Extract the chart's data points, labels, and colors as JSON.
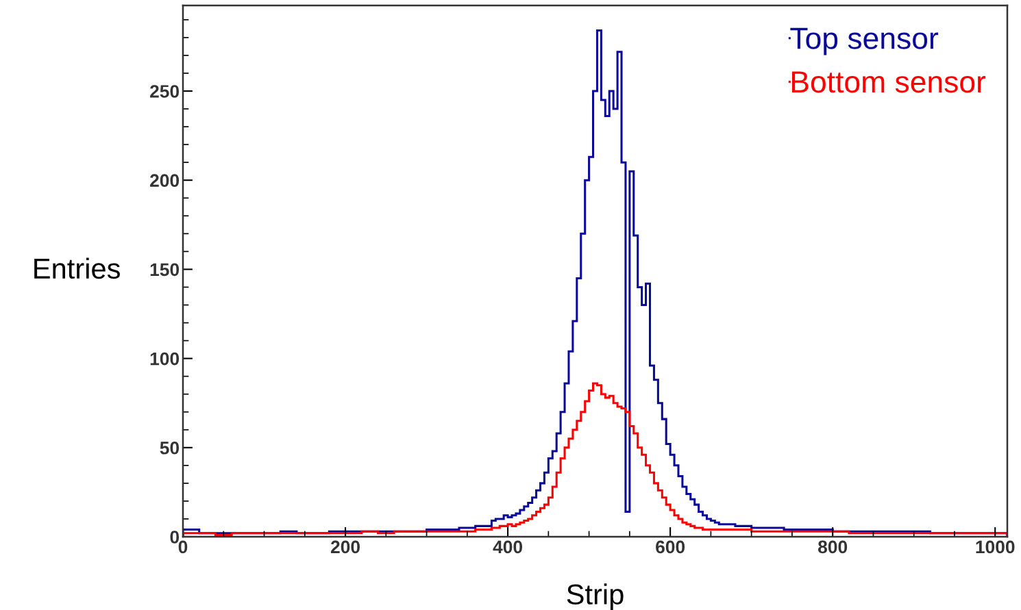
{
  "chart_data": {
    "type": "histogram",
    "xlabel": "Strip",
    "ylabel": "Entries",
    "bins": [
      0,
      20,
      40,
      60,
      80,
      100,
      120,
      140,
      160,
      180,
      200,
      220,
      240,
      260,
      280,
      300,
      320,
      340,
      360,
      380,
      385,
      390,
      395,
      400,
      405,
      410,
      415,
      420,
      425,
      430,
      435,
      440,
      445,
      450,
      455,
      460,
      465,
      470,
      475,
      480,
      485,
      490,
      495,
      500,
      505,
      510,
      515,
      520,
      525,
      530,
      535,
      540,
      545,
      550,
      555,
      560,
      565,
      570,
      575,
      580,
      585,
      590,
      595,
      600,
      605,
      610,
      615,
      620,
      625,
      630,
      635,
      640,
      645,
      650,
      655,
      660,
      680,
      700,
      720,
      740,
      760,
      780,
      800,
      820,
      840,
      860,
      880,
      900,
      920,
      940,
      960,
      980,
      1000,
      1015
    ],
    "series": [
      {
        "name": "Top sensor",
        "color": "#0a0a9a",
        "values": [
          4,
          2,
          2,
          2,
          2,
          2,
          3,
          2,
          2,
          3,
          3,
          3,
          3,
          3,
          3,
          4,
          4,
          5,
          6,
          9,
          10,
          10,
          12,
          11,
          12,
          13,
          15,
          17,
          19,
          22,
          26,
          30,
          36,
          44,
          48,
          58,
          70,
          86,
          104,
          121,
          145,
          170,
          200,
          213,
          250,
          284,
          245,
          236,
          250,
          240,
          272,
          210,
          14,
          205,
          169,
          140,
          130,
          142,
          96,
          88,
          75,
          66,
          52,
          46,
          40,
          34,
          28,
          24,
          21,
          18,
          14,
          12,
          10,
          9,
          8,
          7,
          6,
          5,
          5,
          4,
          4,
          4,
          3,
          3,
          3,
          3,
          3,
          3,
          2,
          2,
          2,
          2,
          2
        ]
      },
      {
        "name": "Bottom sensor",
        "color": "#ff0000",
        "values": [
          2,
          2,
          1,
          2,
          2,
          2,
          2,
          2,
          2,
          2,
          2,
          3,
          2,
          3,
          3,
          3,
          3,
          3,
          4,
          5,
          5,
          6,
          6,
          7,
          6,
          7,
          8,
          9,
          10,
          12,
          14,
          16,
          18,
          22,
          28,
          36,
          44,
          50,
          55,
          60,
          65,
          70,
          76,
          82,
          86,
          85,
          80,
          78,
          79,
          75,
          73,
          72,
          70,
          62,
          58,
          50,
          46,
          40,
          36,
          30,
          26,
          22,
          18,
          15,
          12,
          10,
          8,
          7,
          6,
          5,
          5,
          4,
          4,
          4,
          4,
          4,
          4,
          3,
          3,
          3,
          3,
          3,
          3,
          2,
          2,
          2,
          2,
          2,
          2,
          2,
          2,
          2,
          2
        ]
      }
    ],
    "xlim": [
      0,
      1015
    ],
    "ylim": [
      0,
      298
    ],
    "xticks": [
      0,
      {
        "value": 50,
        "label": null
      },
      {
        "value": 100,
        "label": null
      },
      {
        "value": 150,
        "label": null
      },
      200,
      {
        "value": 250,
        "label": null
      },
      {
        "value": 300,
        "label": null
      },
      {
        "value": 350,
        "label": null
      },
      400,
      {
        "value": 450,
        "label": null
      },
      {
        "value": 500,
        "label": null
      },
      {
        "value": 550,
        "label": null
      },
      600,
      {
        "value": 650,
        "label": null
      },
      {
        "value": 700,
        "label": null
      },
      {
        "value": 750,
        "label": null
      },
      800,
      {
        "value": 850,
        "label": null
      },
      {
        "value": 900,
        "label": null
      },
      {
        "value": 950,
        "label": null
      },
      1000
    ],
    "yticks": [
      0,
      {
        "value": 10,
        "label": null
      },
      {
        "value": 20,
        "label": null
      },
      {
        "value": 30,
        "label": null
      },
      {
        "value": 40,
        "label": null
      },
      50,
      {
        "value": 60,
        "label": null
      },
      {
        "value": 70,
        "label": null
      },
      {
        "value": 80,
        "label": null
      },
      {
        "value": 90,
        "label": null
      },
      100,
      {
        "value": 110,
        "label": null
      },
      {
        "value": 120,
        "label": null
      },
      {
        "value": 130,
        "label": null
      },
      {
        "value": 140,
        "label": null
      },
      150,
      {
        "value": 160,
        "label": null
      },
      {
        "value": 170,
        "label": null
      },
      {
        "value": 180,
        "label": null
      },
      {
        "value": 190,
        "label": null
      },
      200,
      {
        "value": 210,
        "label": null
      },
      {
        "value": 220,
        "label": null
      },
      {
        "value": 230,
        "label": null
      },
      {
        "value": 240,
        "label": null
      },
      250,
      {
        "value": 260,
        "label": null
      },
      {
        "value": 270,
        "label": null
      },
      {
        "value": 280,
        "label": null
      },
      {
        "value": 290,
        "label": null
      }
    ],
    "grid": false,
    "legend": "top right"
  }
}
